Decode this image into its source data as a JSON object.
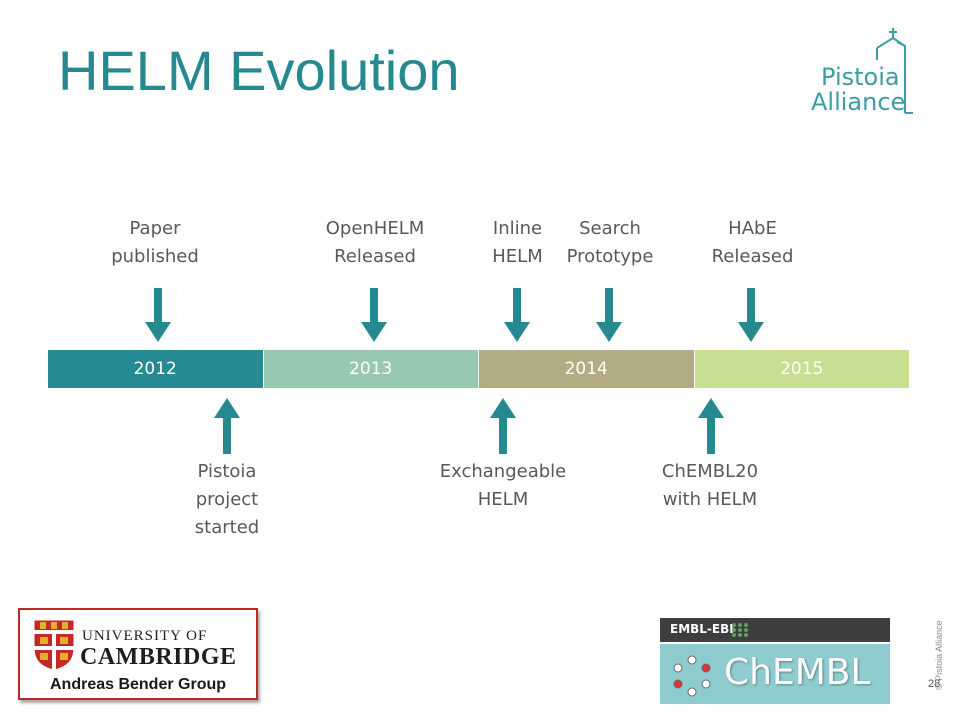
{
  "title": "HELM Evolution",
  "logo": {
    "line1": "Pistoia",
    "line2": "Alliance"
  },
  "timeline": {
    "years": [
      "2012",
      "2013",
      "2014",
      "2015"
    ],
    "above": [
      {
        "label": "Paper\npublished"
      },
      {
        "label": "OpenHELM\nReleased"
      },
      {
        "label": "Inline\nHELM"
      },
      {
        "label": "Search\nPrototype"
      },
      {
        "label": "HAbE\nReleased"
      }
    ],
    "below": [
      {
        "label": "Pistoia\nproject\nstarted"
      },
      {
        "label": "Exchangeable\nHELM"
      },
      {
        "label": "ChEMBL20\nwith HELM"
      }
    ]
  },
  "colors": {
    "accent": "#25898f",
    "y2012": "#258a93",
    "y2013": "#96c9ae",
    "y2014": "#b3ac82",
    "y2015": "#c6df91",
    "arrow": "#25898f"
  },
  "cambridge": {
    "university_of": "UNIVERSITY OF",
    "cambridge": "CAMBRIDGE",
    "group": "Andreas Bender Group"
  },
  "chembl": {
    "top": "EMBL-EBI",
    "name": "ChEMBL"
  },
  "footer": {
    "copyright": "© Pistoia Alliance",
    "page": "28"
  }
}
